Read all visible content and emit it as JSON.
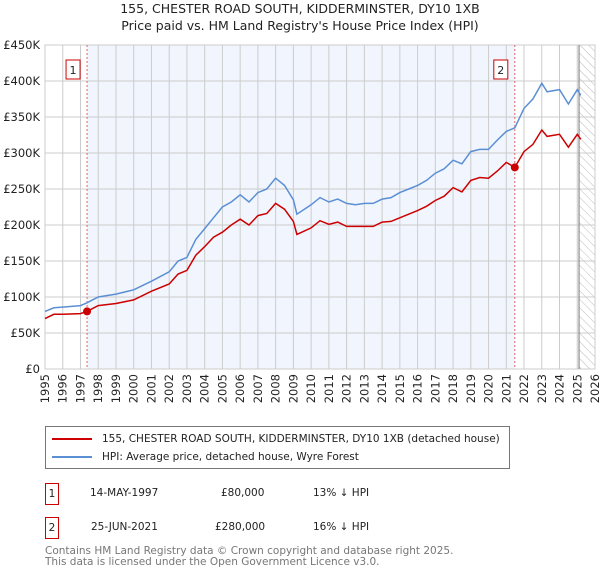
{
  "chart_data": {
    "type": "line",
    "title": "155, CHESTER ROAD SOUTH, KIDDERMINSTER, DY10 1XB",
    "subtitle": "Price paid vs. HM Land Registry's House Price Index (HPI)",
    "xlim": [
      1995,
      2026
    ],
    "ylim": [
      0,
      450000
    ],
    "yticks": [
      {
        "v": 0,
        "label": "£0"
      },
      {
        "v": 50000,
        "label": "£50K"
      },
      {
        "v": 100000,
        "label": "£100K"
      },
      {
        "v": 150000,
        "label": "£150K"
      },
      {
        "v": 200000,
        "label": "£200K"
      },
      {
        "v": 250000,
        "label": "£250K"
      },
      {
        "v": 300000,
        "label": "£300K"
      },
      {
        "v": 350000,
        "label": "£350K"
      },
      {
        "v": 400000,
        "label": "£400K"
      },
      {
        "v": 450000,
        "label": "£450K"
      }
    ],
    "xticks": [
      "1995",
      "1996",
      "1997",
      "1998",
      "1999",
      "2000",
      "2001",
      "2002",
      "2003",
      "2004",
      "2005",
      "2006",
      "2007",
      "2008",
      "2009",
      "2010",
      "2011",
      "2012",
      "2013",
      "2014",
      "2015",
      "2016",
      "2017",
      "2018",
      "2019",
      "2020",
      "2021",
      "2022",
      "2023",
      "2024",
      "2025",
      "2026"
    ],
    "grid": true,
    "shaded_range": [
      1997.37,
      2021.48
    ],
    "forecast_from": 2025.1,
    "series": [
      {
        "name": "155, CHESTER ROAD SOUTH, KIDDERMINSTER, DY10 1XB (detached house)",
        "color": "#cc0000",
        "x": [
          1995,
          1995.5,
          1996,
          1997,
          1997.37,
          1998,
          1999,
          2000,
          2001,
          2002,
          2002.5,
          2003,
          2003.5,
          2004,
          2004.5,
          2005,
          2005.5,
          2006,
          2006.5,
          2007,
          2007.5,
          2008,
          2008.5,
          2009,
          2009.2,
          2010,
          2010.5,
          2011,
          2011.5,
          2012,
          2012.5,
          2013,
          2013.5,
          2014,
          2014.5,
          2015,
          2015.5,
          2016,
          2016.5,
          2017,
          2017.5,
          2018,
          2018.5,
          2019,
          2019.5,
          2020,
          2020.5,
          2021,
          2021.48,
          2022,
          2022.5,
          2023,
          2023.3,
          2024,
          2024.5,
          2025,
          2025.2
        ],
        "y": [
          70,
          76,
          76,
          77,
          80,
          88,
          91,
          96,
          108,
          118,
          132,
          137,
          158,
          170,
          183,
          190,
          200,
          208,
          200,
          213,
          216,
          230,
          222,
          205,
          187,
          196,
          206,
          201,
          204,
          198,
          198,
          198,
          198,
          204,
          205,
          210,
          215,
          220,
          226,
          234,
          240,
          252,
          246,
          262,
          266,
          265,
          275,
          287,
          280,
          302,
          312,
          332,
          323,
          326,
          308,
          326,
          319
        ]
      },
      {
        "name": "HPI: Average price, detached house, Wyre Forest",
        "color": "#5b8fd4",
        "x": [
          1995,
          1995.5,
          1996,
          1997,
          1997.37,
          1998,
          1999,
          2000,
          2001,
          2002,
          2002.5,
          2003,
          2003.5,
          2004,
          2004.5,
          2005,
          2005.5,
          2006,
          2006.5,
          2007,
          2007.5,
          2008,
          2008.5,
          2009,
          2009.2,
          2010,
          2010.5,
          2011,
          2011.5,
          2012,
          2012.5,
          2013,
          2013.5,
          2014,
          2014.5,
          2015,
          2015.5,
          2016,
          2016.5,
          2017,
          2017.5,
          2018,
          2018.5,
          2019,
          2019.5,
          2020,
          2020.5,
          2021,
          2021.48,
          2022,
          2022.5,
          2023,
          2023.3,
          2024,
          2024.5,
          2025,
          2025.2
        ],
        "y": [
          80,
          85,
          86,
          88,
          92,
          100,
          104,
          110,
          122,
          135,
          150,
          155,
          180,
          195,
          210,
          225,
          232,
          242,
          232,
          245,
          250,
          265,
          255,
          235,
          215,
          228,
          238,
          232,
          236,
          230,
          228,
          230,
          230,
          236,
          238,
          245,
          250,
          255,
          262,
          272,
          278,
          290,
          285,
          302,
          305,
          305,
          318,
          330,
          335,
          362,
          375,
          397,
          385,
          388,
          368,
          388,
          380
        ]
      }
    ],
    "y_units": "thousand GBP",
    "sales": [
      {
        "id": "1",
        "x": 1997.37,
        "y": 80
      },
      {
        "id": "2",
        "x": 2021.48,
        "y": 280
      }
    ]
  },
  "legend": {
    "red": "155, CHESTER ROAD SOUTH, KIDDERMINSTER, DY10 1XB (detached house)",
    "blue": "HPI: Average price, detached house, Wyre Forest"
  },
  "transactions": [
    {
      "id": "1",
      "date": "14-MAY-1997",
      "price": "£80,000",
      "hpi": "13% ↓ HPI"
    },
    {
      "id": "2",
      "date": "25-JUN-2021",
      "price": "£280,000",
      "hpi": "16% ↓ HPI"
    }
  ],
  "footer": {
    "line1": "Contains HM Land Registry data © Crown copyright and database right 2025.",
    "line2": "This data is licensed under the Open Government Licence v3.0."
  }
}
